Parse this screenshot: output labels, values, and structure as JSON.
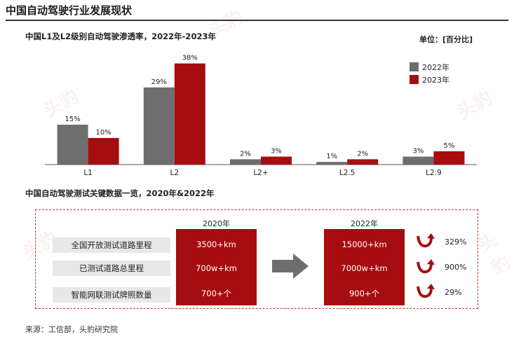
{
  "page": {
    "title": "中国自动驾驶行业发展现状",
    "chart_title": "中国L1及L2级别自动驾驶渗透率，2022年-2023年",
    "unit": "单位：[百分比]",
    "section2_title": "中国自动驾驶测试关键数据一览，2020年&2022年",
    "source": "来源：工信部，头豹研究院",
    "watermark": "头豹"
  },
  "colors": {
    "gray": "#6e6e6e",
    "red": "#a60d10",
    "axis": "#555555"
  },
  "chart_data": {
    "type": "bar",
    "categories": [
      "L1",
      "L2",
      "L2+",
      "L2.5",
      "L2.9"
    ],
    "series": [
      {
        "name": "2022年",
        "values": [
          15,
          29,
          2,
          1,
          3
        ],
        "labels": [
          "15%",
          "29%",
          "2%",
          "1%",
          "3%"
        ]
      },
      {
        "name": "2023年",
        "values": [
          10,
          38,
          3,
          2,
          5
        ],
        "labels": [
          "10%",
          "38%",
          "3%",
          "2%",
          "5%"
        ]
      }
    ],
    "ylim": [
      0,
      40
    ],
    "legend_position": "top-right"
  },
  "test_data": {
    "metrics": [
      "全国开放测试道路里程",
      "已测试道路总里程",
      "智能网联测试牌照数量"
    ],
    "year_2020": {
      "label": "2020年",
      "values": [
        "3500+km",
        "700w+km",
        "700+个"
      ]
    },
    "year_2022": {
      "label": "2022年",
      "values": [
        "15000+km",
        "7000w+km",
        "900+个"
      ]
    },
    "growth": [
      "329%",
      "900%",
      "29%"
    ]
  }
}
